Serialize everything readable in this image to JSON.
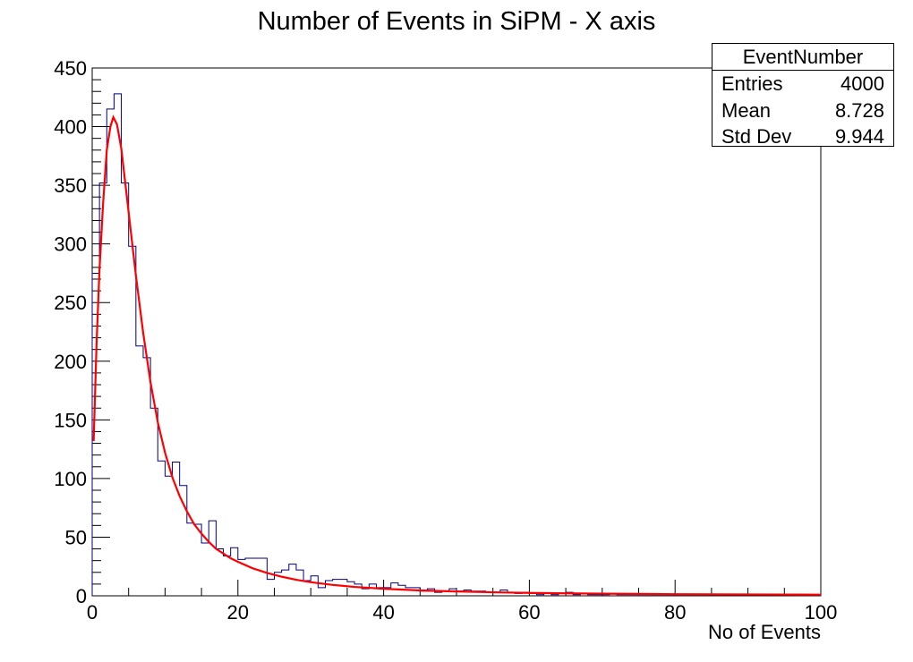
{
  "chart_data": {
    "type": "histogram",
    "title": "Number of Events in SiPM - X axis",
    "xlabel": "No of Events",
    "ylabel": "",
    "xlim": [
      0,
      100
    ],
    "ylim": [
      0,
      450
    ],
    "xticks": [
      0,
      20,
      40,
      60,
      80,
      100
    ],
    "yticks": [
      0,
      50,
      100,
      150,
      200,
      250,
      300,
      350,
      400,
      450
    ],
    "bin_width": 1,
    "series": [
      {
        "kind": "histogram",
        "color": "#000080",
        "bin_edges_start": 0,
        "counts": [
          275,
          352,
          415,
          428,
          352,
          298,
          213,
          203,
          160,
          115,
          102,
          114,
          94,
          62,
          61,
          45,
          64,
          40,
          34,
          41,
          31,
          32,
          32,
          32,
          14,
          20,
          22,
          27,
          22,
          13,
          17,
          7,
          13,
          14,
          14,
          12,
          10,
          6,
          10,
          7,
          7,
          11,
          9,
          7,
          7,
          4,
          6,
          3,
          4,
          6,
          4,
          5,
          4,
          4,
          3,
          3,
          5,
          3,
          2,
          3,
          2,
          1,
          2,
          1,
          2,
          3,
          1,
          2,
          1,
          1,
          1,
          2,
          1,
          1,
          1,
          1,
          1,
          1,
          1,
          1,
          1,
          1,
          1,
          1,
          1,
          1,
          1,
          1,
          1,
          1,
          1,
          1,
          1,
          1,
          1,
          1,
          1,
          1,
          1,
          1
        ]
      },
      {
        "kind": "fit",
        "color": "#ff0000",
        "points": [
          [
            0.2,
            132
          ],
          [
            0.6,
            215
          ],
          [
            1,
            278
          ],
          [
            1.5,
            335
          ],
          [
            2,
            380
          ],
          [
            2.5,
            400
          ],
          [
            2.9,
            408
          ],
          [
            3.4,
            402
          ],
          [
            4,
            381
          ],
          [
            5,
            327
          ],
          [
            6,
            273
          ],
          [
            7,
            224
          ],
          [
            8,
            182
          ],
          [
            9,
            148
          ],
          [
            10,
            122
          ],
          [
            11,
            101
          ],
          [
            12,
            85
          ],
          [
            13,
            72
          ],
          [
            14,
            61
          ],
          [
            15,
            53
          ],
          [
            16,
            46
          ],
          [
            17,
            40
          ],
          [
            18,
            36
          ],
          [
            19,
            32
          ],
          [
            20,
            29
          ],
          [
            22,
            23.5
          ],
          [
            24,
            19.5
          ],
          [
            26,
            16.3
          ],
          [
            28,
            13.7
          ],
          [
            30,
            11.6
          ],
          [
            33,
            9.3
          ],
          [
            36,
            7.6
          ],
          [
            40,
            6.0
          ],
          [
            45,
            4.6
          ],
          [
            50,
            3.7
          ],
          [
            55,
            3.0
          ],
          [
            60,
            2.5
          ],
          [
            65,
            2.1
          ],
          [
            70,
            1.8
          ],
          [
            75,
            1.6
          ],
          [
            80,
            1.4
          ],
          [
            85,
            1.3
          ],
          [
            90,
            1.2
          ],
          [
            95,
            1.1
          ],
          [
            100,
            1.0
          ]
        ]
      }
    ]
  },
  "stats_box": {
    "name": "EventNumber",
    "entries_label": "Entries",
    "entries_value": "4000",
    "mean_label": "Mean",
    "mean_value": "8.728",
    "std_label": "Std Dev",
    "std_value": "9.944"
  }
}
